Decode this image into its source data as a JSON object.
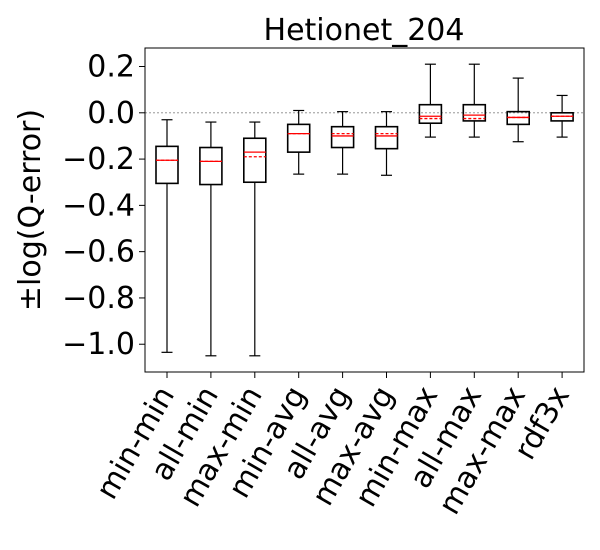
{
  "chart_data": {
    "type": "box",
    "title": "Hetionet_204",
    "xlabel": "",
    "ylabel": "±log(Q-error)",
    "ylim": [
      -1.12,
      0.28
    ],
    "yticks": [
      0.2,
      0.0,
      -0.2,
      -0.4,
      -0.6,
      -0.8,
      -1.0
    ],
    "ytick_labels": [
      "0.2",
      "0.0",
      "−0.2",
      "−0.4",
      "−0.6",
      "−0.8",
      "−1.0"
    ],
    "reference_line": 0.0,
    "grid": false,
    "median_color": "#ff0000",
    "box_color": "#000000",
    "categories": [
      "min-min",
      "all-min",
      "max-min",
      "min-avg",
      "all-avg",
      "max-avg",
      "min-max",
      "all-max",
      "max-max",
      "rdf3x"
    ],
    "boxes": [
      {
        "whisker_low": -1.035,
        "q1": -0.305,
        "median": -0.205,
        "mean": -0.205,
        "q3": -0.145,
        "whisker_high": -0.03
      },
      {
        "whisker_low": -1.05,
        "q1": -0.31,
        "median": -0.21,
        "mean": -0.21,
        "q3": -0.15,
        "whisker_high": -0.04
      },
      {
        "whisker_low": -1.05,
        "q1": -0.3,
        "median": -0.17,
        "mean": -0.19,
        "q3": -0.11,
        "whisker_high": -0.04
      },
      {
        "whisker_low": -0.265,
        "q1": -0.17,
        "median": -0.09,
        "mean": -0.09,
        "q3": -0.05,
        "whisker_high": 0.01
      },
      {
        "whisker_low": -0.265,
        "q1": -0.15,
        "median": -0.1,
        "mean": -0.09,
        "q3": -0.06,
        "whisker_high": 0.005
      },
      {
        "whisker_low": -0.27,
        "q1": -0.155,
        "median": -0.1,
        "mean": -0.09,
        "q3": -0.06,
        "whisker_high": 0.005
      },
      {
        "whisker_low": -0.105,
        "q1": -0.045,
        "median": -0.015,
        "mean": -0.025,
        "q3": 0.035,
        "whisker_high": 0.21
      },
      {
        "whisker_low": -0.105,
        "q1": -0.035,
        "median": -0.01,
        "mean": -0.025,
        "q3": 0.035,
        "whisker_high": 0.21
      },
      {
        "whisker_low": -0.125,
        "q1": -0.05,
        "median": -0.02,
        "mean": -0.02,
        "q3": 0.005,
        "whisker_high": 0.15
      },
      {
        "whisker_low": -0.105,
        "q1": -0.035,
        "median": -0.015,
        "mean": -0.015,
        "q3": 0.0,
        "whisker_high": 0.075
      }
    ]
  }
}
